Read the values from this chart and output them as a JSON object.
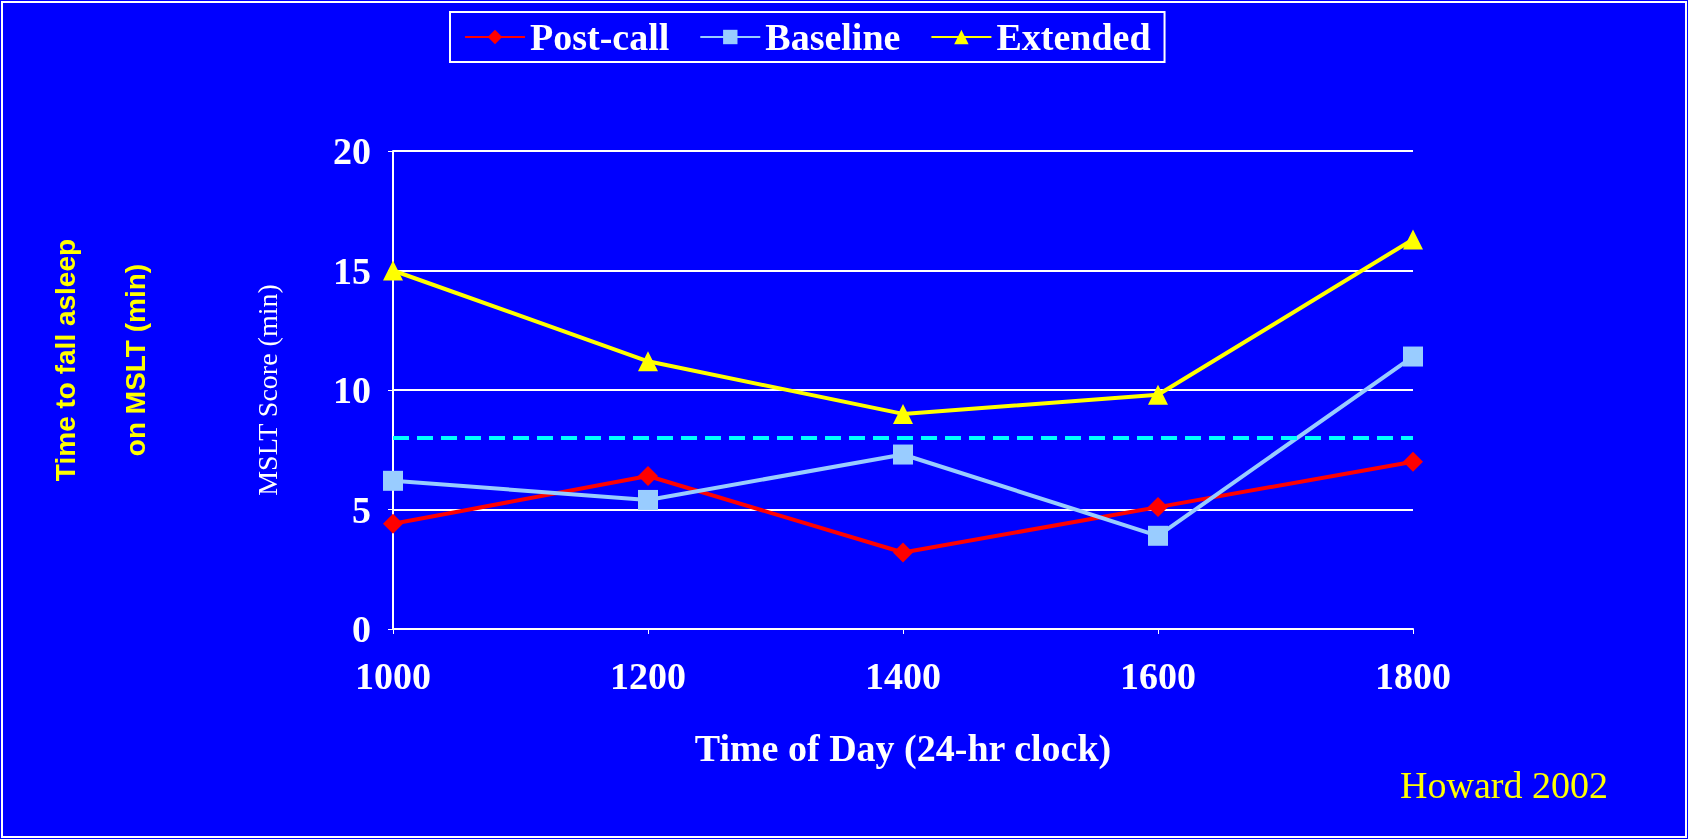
{
  "chart_data": {
    "type": "line",
    "xlabel": "Time of Day (24-hr clock)",
    "ylabel": "MSLT Score (min)",
    "categories": [
      "1000",
      "1200",
      "1400",
      "1600",
      "1800"
    ],
    "series": [
      {
        "name": "Post-call",
        "color": "#ff0000",
        "marker": "diamond",
        "values": [
          4.4,
          6.4,
          3.2,
          5.1,
          7.0
        ]
      },
      {
        "name": "Baseline",
        "color": "#99ccff",
        "marker": "square",
        "values": [
          6.2,
          5.4,
          7.3,
          3.9,
          11.4
        ]
      },
      {
        "name": "Extended",
        "color": "#ffff00",
        "marker": "triangle",
        "values": [
          15.0,
          11.2,
          9.0,
          9.8,
          16.3
        ]
      }
    ],
    "ylim": [
      0,
      20
    ],
    "yticks": [
      0,
      5,
      10,
      15,
      20
    ],
    "grid": "y",
    "legend": "top",
    "ref_lines": [
      {
        "axis": "y",
        "value": 8,
        "color": "#00ffff",
        "line_style": "dashed"
      }
    ],
    "annotations": [
      "Time to fall asleep\non MSLT (min)",
      "Howard 2002"
    ]
  }
}
